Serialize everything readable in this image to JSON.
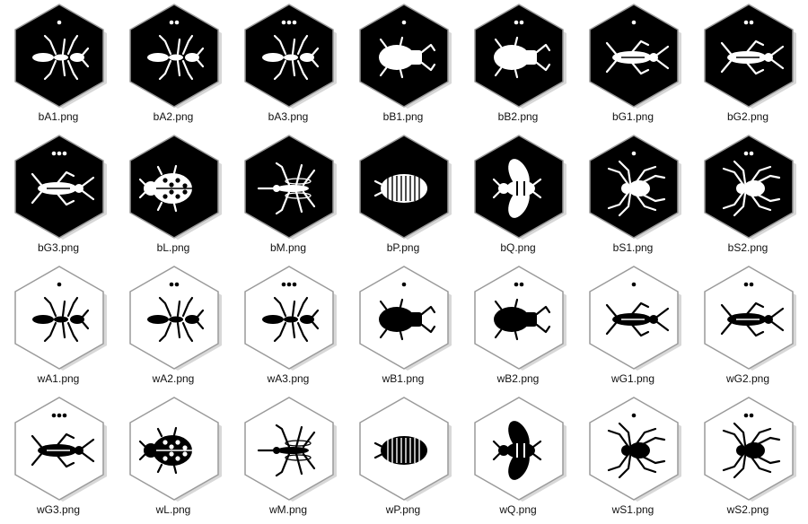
{
  "colors": {
    "black_tile": "#000000",
    "white_tile": "#ffffff",
    "tile_border": "#9a9a9a",
    "label": "#111111"
  },
  "files": [
    {
      "name": "bA1.png",
      "theme": "black",
      "bug": "ant-icon",
      "dots": 1
    },
    {
      "name": "bA2.png",
      "theme": "black",
      "bug": "ant-icon",
      "dots": 2
    },
    {
      "name": "bA3.png",
      "theme": "black",
      "bug": "ant-icon",
      "dots": 3
    },
    {
      "name": "bB1.png",
      "theme": "black",
      "bug": "beetle-icon",
      "dots": 1
    },
    {
      "name": "bB2.png",
      "theme": "black",
      "bug": "beetle-icon",
      "dots": 2
    },
    {
      "name": "bG1.png",
      "theme": "black",
      "bug": "grasshopper-icon",
      "dots": 1
    },
    {
      "name": "bG2.png",
      "theme": "black",
      "bug": "grasshopper-icon",
      "dots": 2
    },
    {
      "name": "bG3.png",
      "theme": "black",
      "bug": "grasshopper-icon",
      "dots": 3
    },
    {
      "name": "bL.png",
      "theme": "black",
      "bug": "ladybug-icon",
      "dots": 0
    },
    {
      "name": "bM.png",
      "theme": "black",
      "bug": "mosquito-icon",
      "dots": 0
    },
    {
      "name": "bP.png",
      "theme": "black",
      "bug": "pillbug-icon",
      "dots": 0
    },
    {
      "name": "bQ.png",
      "theme": "black",
      "bug": "queen-bee-icon",
      "dots": 0
    },
    {
      "name": "bS1.png",
      "theme": "black",
      "bug": "spider-icon",
      "dots": 1
    },
    {
      "name": "bS2.png",
      "theme": "black",
      "bug": "spider-icon",
      "dots": 2
    },
    {
      "name": "wA1.png",
      "theme": "white",
      "bug": "ant-icon",
      "dots": 1
    },
    {
      "name": "wA2.png",
      "theme": "white",
      "bug": "ant-icon",
      "dots": 2
    },
    {
      "name": "wA3.png",
      "theme": "white",
      "bug": "ant-icon",
      "dots": 3
    },
    {
      "name": "wB1.png",
      "theme": "white",
      "bug": "beetle-icon",
      "dots": 1
    },
    {
      "name": "wB2.png",
      "theme": "white",
      "bug": "beetle-icon",
      "dots": 2
    },
    {
      "name": "wG1.png",
      "theme": "white",
      "bug": "grasshopper-icon",
      "dots": 1
    },
    {
      "name": "wG2.png",
      "theme": "white",
      "bug": "grasshopper-icon",
      "dots": 2
    },
    {
      "name": "wG3.png",
      "theme": "white",
      "bug": "grasshopper-icon",
      "dots": 3
    },
    {
      "name": "wL.png",
      "theme": "white",
      "bug": "ladybug-icon",
      "dots": 0
    },
    {
      "name": "wM.png",
      "theme": "white",
      "bug": "mosquito-icon",
      "dots": 0
    },
    {
      "name": "wP.png",
      "theme": "white",
      "bug": "pillbug-icon",
      "dots": 0
    },
    {
      "name": "wQ.png",
      "theme": "white",
      "bug": "queen-bee-icon",
      "dots": 0
    },
    {
      "name": "wS1.png",
      "theme": "white",
      "bug": "spider-icon",
      "dots": 1
    },
    {
      "name": "wS2.png",
      "theme": "white",
      "bug": "spider-icon",
      "dots": 2
    }
  ]
}
